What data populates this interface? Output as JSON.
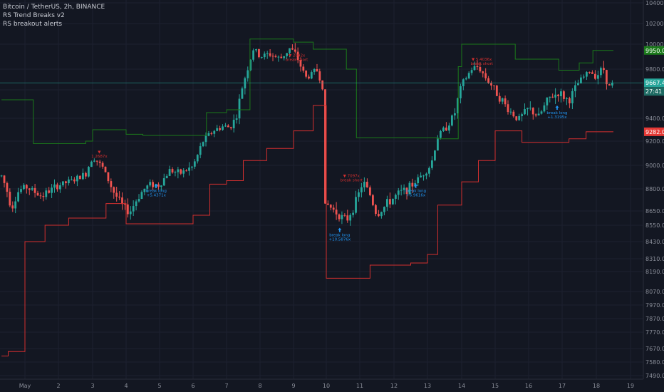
{
  "legend": {
    "symbol": "Bitcoin / TetherUS, 2h, BINANCE",
    "indicator1": "RS Trend Breaks v2",
    "indicator2": "RS breakout alerts"
  },
  "colors": {
    "background": "#131722",
    "up": "#26a69a",
    "down": "#ef5350",
    "resistance": "#1b7a1b",
    "support": "#d32f2f",
    "long_signal": "#2196f3",
    "short_signal": "#d32f2f",
    "price_line": "#26a69a",
    "axis_text": "#8a8e99"
  },
  "price_tags": {
    "resistance": "9950.00",
    "current": "9667.43",
    "countdown": "27:41",
    "support": "9282.00"
  },
  "chart_data": {
    "type": "candlestick",
    "y_axis_ticks": [
      "10400.00",
      "10200.00",
      "10000.00",
      "9800.00",
      "9600.00",
      "9400.00",
      "9200.00",
      "9000.00",
      "8800.00",
      "8650.00",
      "8550.00",
      "8430.00",
      "8310.00",
      "8190.00",
      "8070.00",
      "7970.00",
      "7870.00",
      "7770.00",
      "7670.00",
      "7580.00",
      "7490.00"
    ],
    "x_axis_ticks": [
      "May",
      "2",
      "3",
      "4",
      "5",
      "6",
      "7",
      "8",
      "9",
      "10",
      "11",
      "12",
      "13",
      "14",
      "15",
      "16",
      "17",
      "18",
      "19"
    ],
    "last_price": 9667.43,
    "annotations": [
      {
        "kind": "short",
        "lines": [
          "▼",
          "1.2687x"
        ],
        "x": 3.2,
        "price": 9100
      },
      {
        "kind": "long",
        "lines": [
          "break long",
          "+5.4371x"
        ],
        "x": 4.9,
        "price": 8820
      },
      {
        "kind": "short",
        "lines": [
          "▼ 2092x",
          "break short"
        ],
        "x": 9.1,
        "price": 9900
      },
      {
        "kind": "short",
        "lines": [
          "▼ 7097x",
          "break short"
        ],
        "x": 10.75,
        "price": 8900
      },
      {
        "kind": "long",
        "lines": [
          "break long",
          "+10.5876x"
        ],
        "x": 10.4,
        "price": 8510
      },
      {
        "kind": "long",
        "lines": [
          "break long",
          "+6.9616x"
        ],
        "x": 12.65,
        "price": 8820
      },
      {
        "kind": "short",
        "lines": [
          "▼ 5.4036x",
          "break short"
        ],
        "x": 14.6,
        "price": 9870
      },
      {
        "kind": "long",
        "lines": [
          "break long",
          "+1.3195x"
        ],
        "x": 16.85,
        "price": 9470
      }
    ]
  }
}
